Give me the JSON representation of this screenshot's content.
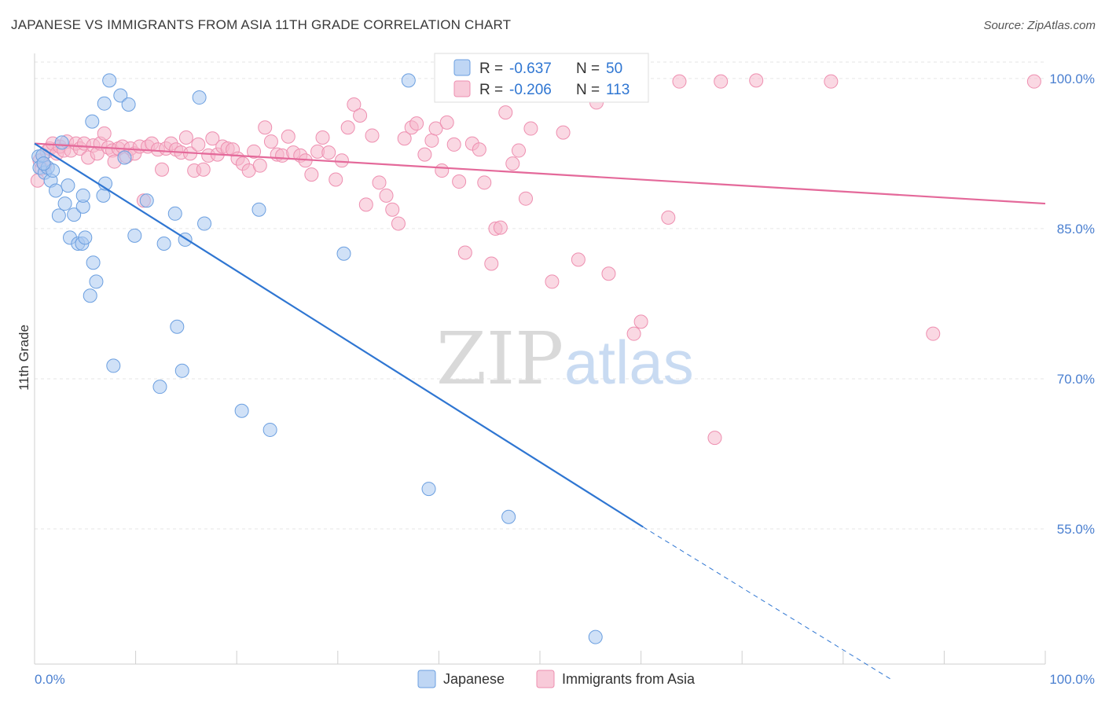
{
  "title": "JAPANESE VS IMMIGRANTS FROM ASIA 11TH GRADE CORRELATION CHART",
  "source": "Source: ZipAtlas.com",
  "watermark": {
    "zip": "ZIP",
    "atlas": "atlas"
  },
  "colors": {
    "japanese_fill": "#a9c8f0",
    "japanese_stroke": "#6b9fe0",
    "japanese_line": "#2f76d2",
    "asia_fill": "#f6b8cc",
    "asia_stroke": "#ee8fb0",
    "asia_line": "#e4699a",
    "tick_color": "#4a7fd0",
    "grid": "#e6e6e6"
  },
  "legend": {
    "rows": [
      {
        "r_label": "R =",
        "r_value": "-0.637",
        "n_label": "N =",
        "n_value": "50"
      },
      {
        "r_label": "R =",
        "r_value": "-0.206",
        "n_label": "N =",
        "n_value": "113"
      }
    ]
  },
  "chart_data": {
    "type": "scatter",
    "title": "JAPANESE VS IMMIGRANTS FROM ASIA 11TH GRADE CORRELATION CHART",
    "xlabel": "",
    "ylabel": "11th Grade",
    "xlim": [
      0,
      100
    ],
    "ylim": [
      41.5,
      102.5
    ],
    "x_tick_labels": [
      "0.0%",
      "100.0%"
    ],
    "y_ticks": [
      55,
      70,
      85,
      100
    ],
    "y_tick_labels": [
      "55.0%",
      "70.0%",
      "85.0%",
      "100.0%"
    ],
    "grid": true,
    "legend_position": "bottom",
    "series": [
      {
        "name": "Japanese",
        "r": -0.637,
        "n": 50,
        "trend": {
          "x0": 0,
          "y0": 93.5,
          "x1": 60.2,
          "y1": 55.2,
          "dash_to_x": 84.7,
          "dash_to_y": 40.0
        },
        "points": [
          [
            0.4,
            92.2
          ],
          [
            0.5,
            91.1
          ],
          [
            0.8,
            92.3
          ],
          [
            1.0,
            90.6
          ],
          [
            1.3,
            91.1
          ],
          [
            1.6,
            89.8
          ],
          [
            1.8,
            90.8
          ],
          [
            2.1,
            88.8
          ],
          [
            2.4,
            86.3
          ],
          [
            2.7,
            93.6
          ],
          [
            3.0,
            87.5
          ],
          [
            3.3,
            89.3
          ],
          [
            3.5,
            84.1
          ],
          [
            3.9,
            86.4
          ],
          [
            4.3,
            83.5
          ],
          [
            4.7,
            83.5
          ],
          [
            4.8,
            87.2
          ],
          [
            4.8,
            88.3
          ],
          [
            5.0,
            84.1
          ],
          [
            5.5,
            78.3
          ],
          [
            5.7,
            95.7
          ],
          [
            5.8,
            81.6
          ],
          [
            6.1,
            79.7
          ],
          [
            6.8,
            88.3
          ],
          [
            6.9,
            97.5
          ],
          [
            7.0,
            89.5
          ],
          [
            7.4,
            99.8
          ],
          [
            7.8,
            71.3
          ],
          [
            8.5,
            98.3
          ],
          [
            8.9,
            92.1
          ],
          [
            9.3,
            97.4
          ],
          [
            9.9,
            84.3
          ],
          [
            11.1,
            87.8
          ],
          [
            12.4,
            69.2
          ],
          [
            12.8,
            83.5
          ],
          [
            13.9,
            86.5
          ],
          [
            14.1,
            75.2
          ],
          [
            14.6,
            70.8
          ],
          [
            14.9,
            83.9
          ],
          [
            16.3,
            98.1
          ],
          [
            16.8,
            85.5
          ],
          [
            20.5,
            66.8
          ],
          [
            22.2,
            86.9
          ],
          [
            23.3,
            64.9
          ],
          [
            30.6,
            82.5
          ],
          [
            37.0,
            99.8
          ],
          [
            39.0,
            59.0
          ],
          [
            46.9,
            56.2
          ],
          [
            55.5,
            44.2
          ],
          [
            0.9,
            91.5
          ]
        ]
      },
      {
        "name": "Immigrants from Asia",
        "r": -0.206,
        "n": 113,
        "trend": {
          "x0": 0,
          "y0": 93.5,
          "x1": 100,
          "y1": 87.5
        },
        "points": [
          [
            0.3,
            89.8
          ],
          [
            0.5,
            91.8
          ],
          [
            0.7,
            91.0
          ],
          [
            1.0,
            91.3
          ],
          [
            1.2,
            92.7
          ],
          [
            1.5,
            93.0
          ],
          [
            1.8,
            93.5
          ],
          [
            2.2,
            92.5
          ],
          [
            2.5,
            93.2
          ],
          [
            2.9,
            92.8
          ],
          [
            3.2,
            93.7
          ],
          [
            3.6,
            92.8
          ],
          [
            4.1,
            93.5
          ],
          [
            4.5,
            93.0
          ],
          [
            4.9,
            93.5
          ],
          [
            5.3,
            92.1
          ],
          [
            5.8,
            93.3
          ],
          [
            6.2,
            92.5
          ],
          [
            6.5,
            93.5
          ],
          [
            6.9,
            94.5
          ],
          [
            7.3,
            93.1
          ],
          [
            7.7,
            92.8
          ],
          [
            7.9,
            91.7
          ],
          [
            8.3,
            93.0
          ],
          [
            8.7,
            93.2
          ],
          [
            9.1,
            92.2
          ],
          [
            9.5,
            93.0
          ],
          [
            9.9,
            92.5
          ],
          [
            10.4,
            93.2
          ],
          [
            10.8,
            87.8
          ],
          [
            11.2,
            93.2
          ],
          [
            11.6,
            93.5
          ],
          [
            12.2,
            92.9
          ],
          [
            12.6,
            90.9
          ],
          [
            13.0,
            93.0
          ],
          [
            13.5,
            93.5
          ],
          [
            14.0,
            92.9
          ],
          [
            14.5,
            92.6
          ],
          [
            15.0,
            94.1
          ],
          [
            15.4,
            92.5
          ],
          [
            15.8,
            90.8
          ],
          [
            16.2,
            93.4
          ],
          [
            16.7,
            90.9
          ],
          [
            17.2,
            92.3
          ],
          [
            17.6,
            94.0
          ],
          [
            18.1,
            92.4
          ],
          [
            18.6,
            93.2
          ],
          [
            19.1,
            93.0
          ],
          [
            19.6,
            92.9
          ],
          [
            20.1,
            92.0
          ],
          [
            20.6,
            91.5
          ],
          [
            21.2,
            90.8
          ],
          [
            21.7,
            92.7
          ],
          [
            22.3,
            91.3
          ],
          [
            22.8,
            95.1
          ],
          [
            23.4,
            93.7
          ],
          [
            24.0,
            92.4
          ],
          [
            24.5,
            92.3
          ],
          [
            25.1,
            94.2
          ],
          [
            25.6,
            92.6
          ],
          [
            26.3,
            92.3
          ],
          [
            26.8,
            91.8
          ],
          [
            27.4,
            90.4
          ],
          [
            28.0,
            92.7
          ],
          [
            28.5,
            94.1
          ],
          [
            29.1,
            92.6
          ],
          [
            29.8,
            89.9
          ],
          [
            30.4,
            91.8
          ],
          [
            31.0,
            95.1
          ],
          [
            31.6,
            97.4
          ],
          [
            32.2,
            96.3
          ],
          [
            32.8,
            87.4
          ],
          [
            33.4,
            94.3
          ],
          [
            34.1,
            89.6
          ],
          [
            34.8,
            88.3
          ],
          [
            35.4,
            86.9
          ],
          [
            36.0,
            85.5
          ],
          [
            36.6,
            94.0
          ],
          [
            37.3,
            95.1
          ],
          [
            37.8,
            95.5
          ],
          [
            38.6,
            92.4
          ],
          [
            39.3,
            93.8
          ],
          [
            39.7,
            95.0
          ],
          [
            40.3,
            90.8
          ],
          [
            40.8,
            95.6
          ],
          [
            41.5,
            93.4
          ],
          [
            42.0,
            89.7
          ],
          [
            42.6,
            82.6
          ],
          [
            43.3,
            93.5
          ],
          [
            44.0,
            92.9
          ],
          [
            44.5,
            89.6
          ],
          [
            45.2,
            81.5
          ],
          [
            45.6,
            85.0
          ],
          [
            46.1,
            85.1
          ],
          [
            46.6,
            96.6
          ],
          [
            47.3,
            91.5
          ],
          [
            47.9,
            92.8
          ],
          [
            48.6,
            88.0
          ],
          [
            49.1,
            95.0
          ],
          [
            51.2,
            79.7
          ],
          [
            52.3,
            94.6
          ],
          [
            53.8,
            81.9
          ],
          [
            55.6,
            97.6
          ],
          [
            56.8,
            80.5
          ],
          [
            59.3,
            74.5
          ],
          [
            60.0,
            75.7
          ],
          [
            62.7,
            86.1
          ],
          [
            63.8,
            99.7
          ],
          [
            67.3,
            64.1
          ],
          [
            67.9,
            99.7
          ],
          [
            71.4,
            99.8
          ],
          [
            78.8,
            99.7
          ],
          [
            88.9,
            74.5
          ],
          [
            98.9,
            99.7
          ],
          [
            54.0,
            100.0
          ]
        ]
      }
    ]
  },
  "bottom_legend": [
    "Japanese",
    "Immigrants from Asia"
  ]
}
